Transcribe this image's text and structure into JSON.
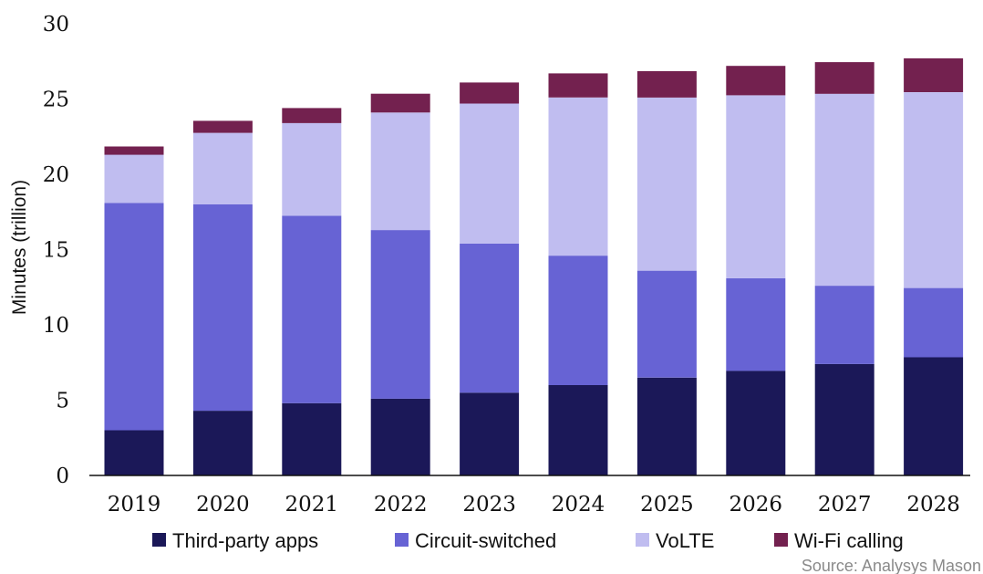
{
  "chart_data": {
    "type": "bar",
    "stacked": true,
    "categories": [
      "2019",
      "2020",
      "2021",
      "2022",
      "2023",
      "2024",
      "2025",
      "2026",
      "2027",
      "2028"
    ],
    "series": [
      {
        "name": "Third-party apps",
        "color": "#1b1858",
        "values": [
          3.0,
          4.3,
          4.8,
          5.1,
          5.5,
          6.0,
          6.5,
          6.95,
          7.4,
          7.85
        ]
      },
      {
        "name": "Circuit-switched",
        "color": "#6763d4",
        "values": [
          15.1,
          13.7,
          12.45,
          11.2,
          9.9,
          8.6,
          7.1,
          6.15,
          5.2,
          4.6
        ]
      },
      {
        "name": "VoLTE",
        "color": "#c0bdf0",
        "values": [
          3.2,
          4.75,
          6.15,
          7.8,
          9.3,
          10.5,
          11.5,
          12.15,
          12.75,
          13.0
        ]
      },
      {
        "name": "Wi-Fi calling",
        "color": "#73214f",
        "values": [
          0.55,
          0.8,
          1.0,
          1.25,
          1.4,
          1.6,
          1.75,
          1.95,
          2.1,
          2.25
        ]
      }
    ],
    "ylabel": "Minutes (trillion)",
    "xlabel": "",
    "ylim": [
      0,
      30
    ],
    "yticks": [
      "0",
      "5",
      "10",
      "15",
      "20",
      "25",
      "30"
    ],
    "grid": false,
    "legend_position": "bottom",
    "source": "Source: Analysys Mason"
  }
}
